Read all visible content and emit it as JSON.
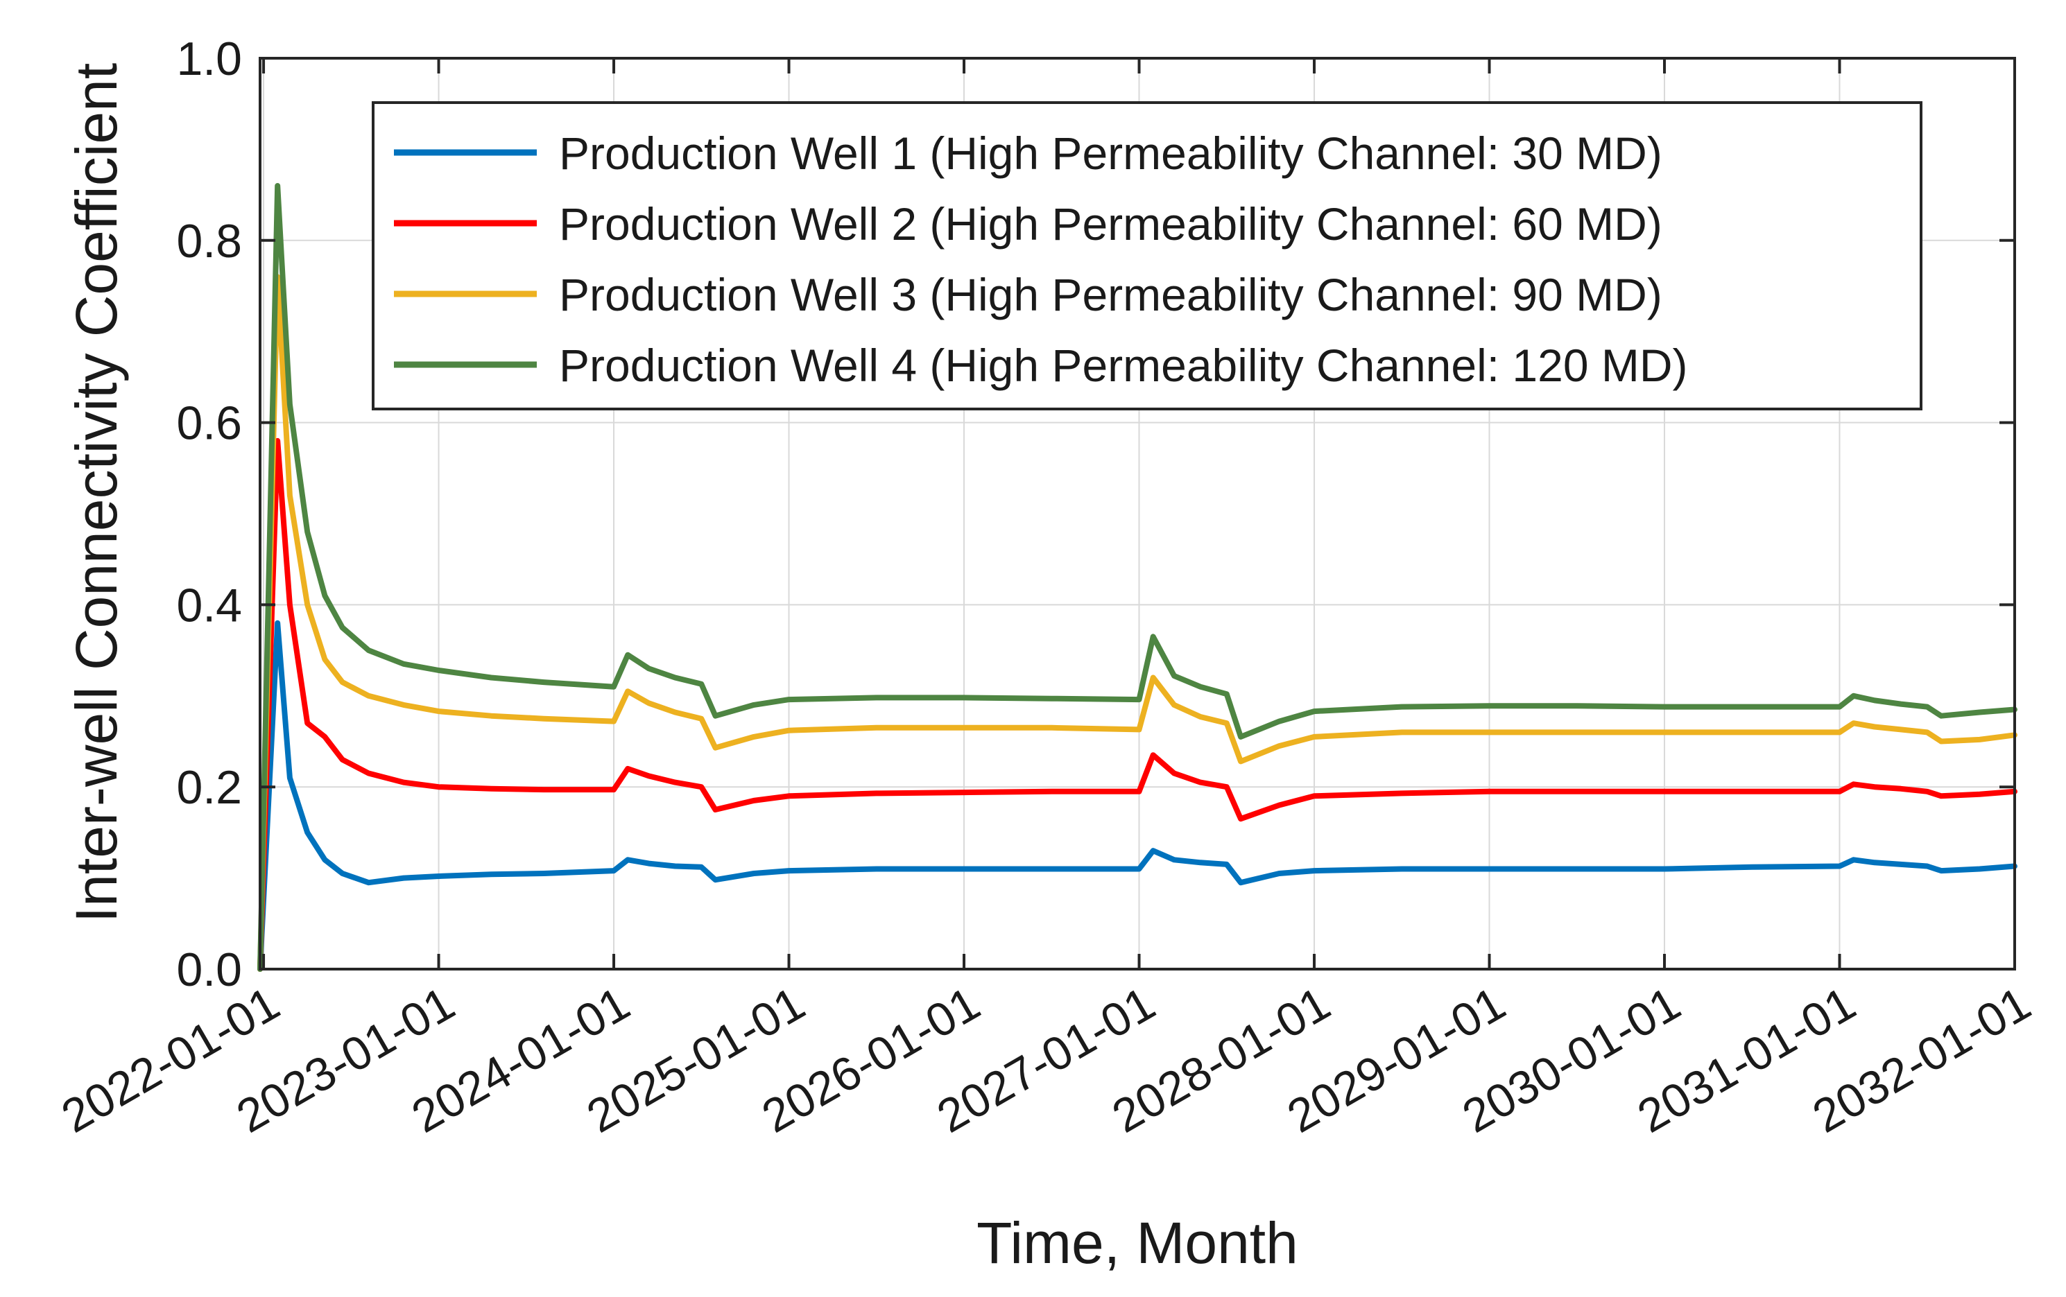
{
  "chart_data": {
    "type": "line",
    "title": "",
    "xlabel": "Time, Month",
    "ylabel": "Inter-well Connectivity Coefficient",
    "ylim": [
      0,
      1
    ],
    "xlim": [
      2021.98,
      2032.0
    ],
    "grid": true,
    "legend_position": "top-right",
    "y_ticks": [
      {
        "value": 0.0,
        "label": "0.0"
      },
      {
        "value": 0.2,
        "label": "0.2"
      },
      {
        "value": 0.4,
        "label": "0.4"
      },
      {
        "value": 0.6,
        "label": "0.6"
      },
      {
        "value": 0.8,
        "label": "0.8"
      },
      {
        "value": 1.0,
        "label": "1.0"
      }
    ],
    "x_ticks": [
      {
        "value": 2022,
        "label": "2022-01-01"
      },
      {
        "value": 2023,
        "label": "2023-01-01"
      },
      {
        "value": 2024,
        "label": "2024-01-01"
      },
      {
        "value": 2025,
        "label": "2025-01-01"
      },
      {
        "value": 2026,
        "label": "2026-01-01"
      },
      {
        "value": 2027,
        "label": "2027-01-01"
      },
      {
        "value": 2028,
        "label": "2028-01-01"
      },
      {
        "value": 2029,
        "label": "2029-01-01"
      },
      {
        "value": 2030,
        "label": "2030-01-01"
      },
      {
        "value": 2031,
        "label": "2031-01-01"
      },
      {
        "value": 2032,
        "label": "2032-01-01"
      }
    ],
    "x": [
      2021.98,
      2022.08,
      2022.15,
      2022.25,
      2022.35,
      2022.45,
      2022.6,
      2022.8,
      2023.0,
      2023.3,
      2023.6,
      2024.0,
      2024.08,
      2024.2,
      2024.35,
      2024.5,
      2024.58,
      2024.8,
      2025.0,
      2025.5,
      2026.0,
      2026.5,
      2027.0,
      2027.08,
      2027.2,
      2027.35,
      2027.5,
      2027.58,
      2027.8,
      2028.0,
      2028.5,
      2029.0,
      2029.5,
      2030.0,
      2030.5,
      2031.0,
      2031.08,
      2031.2,
      2031.35,
      2031.5,
      2031.58,
      2031.8,
      2032.0
    ],
    "series": [
      {
        "name": "Production Well 1 (High Permeability Channel: 30 MD)",
        "color": "#0072BD",
        "values": [
          0.0,
          0.38,
          0.21,
          0.15,
          0.12,
          0.105,
          0.095,
          0.1,
          0.102,
          0.104,
          0.105,
          0.108,
          0.12,
          0.116,
          0.113,
          0.112,
          0.098,
          0.105,
          0.108,
          0.11,
          0.11,
          0.11,
          0.11,
          0.13,
          0.12,
          0.117,
          0.115,
          0.095,
          0.105,
          0.108,
          0.11,
          0.11,
          0.11,
          0.11,
          0.112,
          0.113,
          0.12,
          0.117,
          0.115,
          0.113,
          0.108,
          0.11,
          0.113
        ]
      },
      {
        "name": "Production Well 2 (High Permeability Channel: 60 MD)",
        "color": "#FF0000",
        "values": [
          0.0,
          0.58,
          0.4,
          0.27,
          0.255,
          0.23,
          0.215,
          0.205,
          0.2,
          0.198,
          0.197,
          0.197,
          0.22,
          0.212,
          0.205,
          0.2,
          0.175,
          0.185,
          0.19,
          0.193,
          0.194,
          0.195,
          0.195,
          0.235,
          0.215,
          0.205,
          0.2,
          0.165,
          0.18,
          0.19,
          0.193,
          0.195,
          0.195,
          0.195,
          0.195,
          0.195,
          0.203,
          0.2,
          0.198,
          0.195,
          0.19,
          0.192,
          0.195
        ]
      },
      {
        "name": "Production Well 3 (High Permeability Channel: 90 MD)",
        "color": "#EDB120",
        "values": [
          0.0,
          0.76,
          0.52,
          0.4,
          0.34,
          0.315,
          0.3,
          0.29,
          0.283,
          0.278,
          0.275,
          0.272,
          0.305,
          0.292,
          0.282,
          0.275,
          0.243,
          0.255,
          0.262,
          0.265,
          0.265,
          0.265,
          0.263,
          0.32,
          0.29,
          0.277,
          0.27,
          0.228,
          0.245,
          0.255,
          0.26,
          0.26,
          0.26,
          0.26,
          0.26,
          0.26,
          0.27,
          0.266,
          0.263,
          0.26,
          0.25,
          0.252,
          0.257
        ]
      },
      {
        "name": "Production Well 4 (High Permeability Channel: 120 MD)",
        "color": "#4E8542",
        "values": [
          0.0,
          0.86,
          0.62,
          0.48,
          0.41,
          0.375,
          0.35,
          0.335,
          0.328,
          0.32,
          0.315,
          0.31,
          0.345,
          0.33,
          0.32,
          0.313,
          0.278,
          0.29,
          0.296,
          0.298,
          0.298,
          0.297,
          0.296,
          0.365,
          0.322,
          0.31,
          0.302,
          0.255,
          0.272,
          0.283,
          0.288,
          0.289,
          0.289,
          0.288,
          0.288,
          0.288,
          0.3,
          0.295,
          0.291,
          0.288,
          0.278,
          0.282,
          0.285
        ]
      }
    ]
  }
}
